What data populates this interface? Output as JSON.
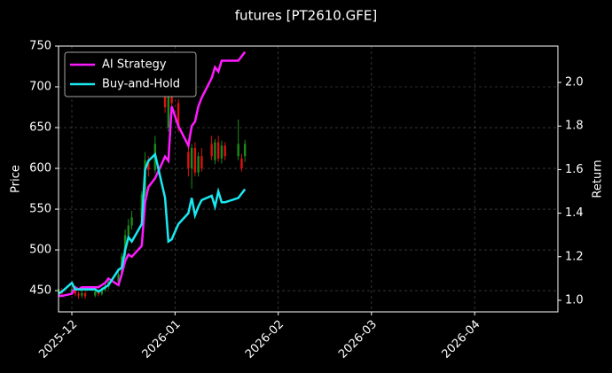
{
  "chart_data": {
    "type": "candlestick",
    "title": "futures [PT2610.GFE]",
    "y_label": "Price",
    "y2_label": "Return",
    "x": [
      "2025-11-27",
      "2025-11-28",
      "2025-12-01",
      "2025-12-02",
      "2025-12-03",
      "2025-12-04",
      "2025-12-05",
      "2025-12-08",
      "2025-12-09",
      "2025-12-10",
      "2025-12-11",
      "2025-12-12",
      "2025-12-15",
      "2025-12-16",
      "2025-12-17",
      "2025-12-18",
      "2025-12-19",
      "2025-12-22",
      "2025-12-23",
      "2025-12-24",
      "2025-12-26",
      "2025-12-29",
      "2025-12-30",
      "2025-12-31",
      "2026-01-02",
      "2026-01-05",
      "2026-01-06",
      "2026-01-07",
      "2026-01-08",
      "2026-01-09",
      "2026-01-12",
      "2026-01-13",
      "2026-01-14",
      "2026-01-15",
      "2026-01-16",
      "2026-01-20",
      "2026-01-21",
      "2026-01-22"
    ],
    "open": [
      448,
      450,
      447,
      452,
      446,
      444,
      447,
      444,
      449,
      446,
      451,
      455,
      461,
      470,
      492,
      518,
      530,
      540,
      568,
      610,
      598,
      705,
      650,
      700,
      680,
      620,
      600,
      625,
      595,
      615,
      630,
      610,
      632,
      612,
      628,
      615,
      612,
      615
    ],
    "close": [
      452,
      447,
      452,
      446,
      444,
      447,
      443,
      449,
      446,
      451,
      455,
      461,
      470,
      492,
      518,
      530,
      540,
      568,
      610,
      598,
      630,
      675,
      700,
      680,
      650,
      600,
      625,
      595,
      615,
      600,
      615,
      632,
      612,
      628,
      615,
      630,
      600,
      630
    ],
    "high": [
      455,
      453,
      456,
      455,
      449,
      450,
      449,
      452,
      451,
      454,
      458,
      464,
      474,
      496,
      525,
      538,
      548,
      572,
      620,
      615,
      640,
      712,
      708,
      705,
      685,
      635,
      630,
      632,
      620,
      625,
      640,
      636,
      640,
      634,
      632,
      660,
      618,
      635
    ],
    "low": [
      440,
      444,
      445,
      443,
      440,
      441,
      440,
      442,
      443,
      444,
      449,
      452,
      458,
      468,
      489,
      512,
      525,
      536,
      565,
      590,
      594,
      668,
      645,
      672,
      645,
      590,
      575,
      590,
      590,
      596,
      610,
      605,
      608,
      606,
      610,
      610,
      596,
      608
    ],
    "up_color": "#1a8a1a",
    "down_color": "#e01010",
    "series": [
      {
        "name": "AI Strategy",
        "color": "#ff1aff",
        "axis": "y2",
        "values": [
          1.02,
          1.02,
          1.03,
          1.06,
          1.05,
          1.06,
          1.06,
          1.06,
          1.06,
          1.07,
          1.08,
          1.1,
          1.07,
          1.12,
          1.18,
          1.21,
          1.2,
          1.25,
          1.45,
          1.52,
          1.56,
          1.66,
          1.64,
          1.89,
          1.8,
          1.71,
          1.8,
          1.82,
          1.89,
          1.93,
          2.02,
          2.07,
          2.05,
          2.1,
          2.1,
          2.1,
          2.12,
          2.14
        ]
      },
      {
        "name": "Buy-and-Hold",
        "color": "#1ae8f0",
        "axis": "y2",
        "values": [
          1.03,
          1.04,
          1.08,
          1.05,
          1.05,
          1.05,
          1.05,
          1.05,
          1.04,
          1.05,
          1.06,
          1.07,
          1.14,
          1.15,
          1.23,
          1.29,
          1.27,
          1.35,
          1.6,
          1.64,
          1.67,
          1.47,
          1.27,
          1.28,
          1.35,
          1.4,
          1.47,
          1.39,
          1.43,
          1.46,
          1.48,
          1.43,
          1.5,
          1.45,
          1.45,
          1.47,
          1.49,
          1.51
        ]
      }
    ],
    "xlim": [
      "2025-11-27",
      "2026-04-26"
    ],
    "xticks": [
      {
        "value": "2025-12-01",
        "label": "2025-12"
      },
      {
        "value": "2026-01-01",
        "label": "2026-01"
      },
      {
        "value": "2026-02-01",
        "label": "2026-02"
      },
      {
        "value": "2026-03-01",
        "label": "2026-03"
      },
      {
        "value": "2026-04-01",
        "label": "2026-04"
      }
    ],
    "ylim": [
      424,
      750
    ],
    "yticks": [
      450,
      500,
      550,
      600,
      650,
      700,
      750
    ],
    "y2lim": [
      0.947,
      2.167
    ],
    "y2ticks": [
      {
        "value": 1,
        "label": "1.0"
      },
      1.2,
      1.4,
      1.6,
      1.8,
      {
        "value": 2,
        "label": "2.0"
      }
    ],
    "grid": true,
    "legend": "upper left"
  }
}
